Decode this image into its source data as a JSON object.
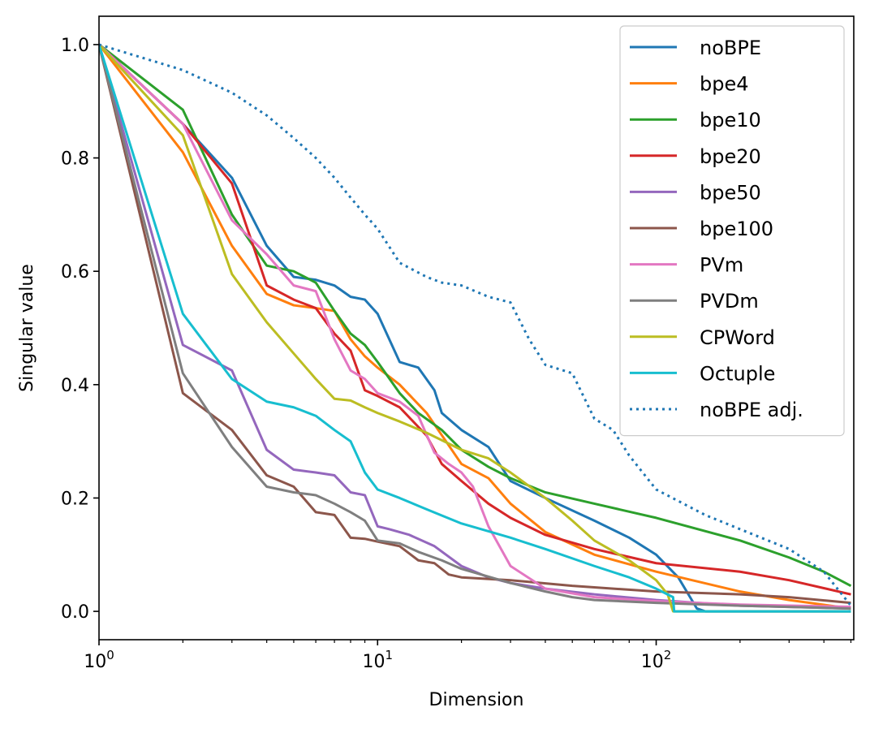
{
  "chart_data": {
    "type": "line",
    "xlabel": "Dimension",
    "ylabel": "Singular value",
    "x_scale": "log",
    "xlim": [
      1,
      512
    ],
    "ylim": [
      -0.05,
      1.05
    ],
    "x_ticks": [
      {
        "base": "10",
        "exp": "0",
        "value": 1
      },
      {
        "base": "10",
        "exp": "1",
        "value": 10
      },
      {
        "base": "10",
        "exp": "2",
        "value": 100
      }
    ],
    "y_ticks": [
      "0.0",
      "0.2",
      "0.4",
      "0.6",
      "0.8",
      "1.0"
    ],
    "y_tick_values": [
      0.0,
      0.2,
      0.4,
      0.6,
      0.8,
      1.0
    ],
    "grid": false,
    "legend_position": "top-right",
    "series": [
      {
        "name": "noBPE",
        "color": "#1f77b4",
        "dash": "solid",
        "points": [
          [
            1,
            1.0
          ],
          [
            2,
            0.86
          ],
          [
            3,
            0.765
          ],
          [
            4,
            0.645
          ],
          [
            5,
            0.59
          ],
          [
            6,
            0.585
          ],
          [
            7,
            0.575
          ],
          [
            8,
            0.555
          ],
          [
            9,
            0.55
          ],
          [
            10,
            0.525
          ],
          [
            12,
            0.44
          ],
          [
            14,
            0.43
          ],
          [
            16,
            0.39
          ],
          [
            17,
            0.35
          ],
          [
            20,
            0.32
          ],
          [
            25,
            0.29
          ],
          [
            30,
            0.23
          ],
          [
            40,
            0.2
          ],
          [
            60,
            0.16
          ],
          [
            80,
            0.13
          ],
          [
            100,
            0.1
          ],
          [
            120,
            0.06
          ],
          [
            140,
            0.005
          ],
          [
            150,
            0.0
          ],
          [
            500,
            0.0
          ]
        ]
      },
      {
        "name": "bpe4",
        "color": "#ff7f0e",
        "dash": "solid",
        "points": [
          [
            1,
            1.0
          ],
          [
            2,
            0.81
          ],
          [
            3,
            0.645
          ],
          [
            4,
            0.56
          ],
          [
            5,
            0.54
          ],
          [
            6,
            0.535
          ],
          [
            7,
            0.53
          ],
          [
            8,
            0.48
          ],
          [
            9,
            0.45
          ],
          [
            10,
            0.43
          ],
          [
            12,
            0.4
          ],
          [
            15,
            0.35
          ],
          [
            20,
            0.26
          ],
          [
            25,
            0.235
          ],
          [
            30,
            0.19
          ],
          [
            40,
            0.14
          ],
          [
            60,
            0.1
          ],
          [
            100,
            0.07
          ],
          [
            200,
            0.035
          ],
          [
            300,
            0.02
          ],
          [
            500,
            0.005
          ]
        ]
      },
      {
        "name": "bpe10",
        "color": "#2ca02c",
        "dash": "solid",
        "points": [
          [
            1,
            1.0
          ],
          [
            2,
            0.885
          ],
          [
            3,
            0.7
          ],
          [
            4,
            0.61
          ],
          [
            5,
            0.6
          ],
          [
            6,
            0.58
          ],
          [
            7,
            0.53
          ],
          [
            8,
            0.49
          ],
          [
            9,
            0.47
          ],
          [
            10,
            0.44
          ],
          [
            12,
            0.385
          ],
          [
            14,
            0.35
          ],
          [
            17,
            0.32
          ],
          [
            20,
            0.285
          ],
          [
            25,
            0.255
          ],
          [
            30,
            0.235
          ],
          [
            40,
            0.21
          ],
          [
            60,
            0.19
          ],
          [
            100,
            0.165
          ],
          [
            200,
            0.125
          ],
          [
            300,
            0.095
          ],
          [
            400,
            0.07
          ],
          [
            500,
            0.045
          ]
        ]
      },
      {
        "name": "bpe20",
        "color": "#d62728",
        "dash": "solid",
        "points": [
          [
            1,
            1.0
          ],
          [
            2,
            0.86
          ],
          [
            3,
            0.755
          ],
          [
            4,
            0.575
          ],
          [
            5,
            0.55
          ],
          [
            6,
            0.535
          ],
          [
            7,
            0.49
          ],
          [
            8,
            0.46
          ],
          [
            9,
            0.39
          ],
          [
            10,
            0.38
          ],
          [
            12,
            0.36
          ],
          [
            15,
            0.31
          ],
          [
            17,
            0.26
          ],
          [
            20,
            0.23
          ],
          [
            25,
            0.19
          ],
          [
            30,
            0.165
          ],
          [
            40,
            0.135
          ],
          [
            60,
            0.11
          ],
          [
            100,
            0.085
          ],
          [
            200,
            0.07
          ],
          [
            300,
            0.055
          ],
          [
            500,
            0.03
          ]
        ]
      },
      {
        "name": "bpe50",
        "color": "#9467bd",
        "dash": "solid",
        "points": [
          [
            1,
            1.0
          ],
          [
            2,
            0.47
          ],
          [
            3,
            0.425
          ],
          [
            4,
            0.285
          ],
          [
            5,
            0.25
          ],
          [
            6,
            0.245
          ],
          [
            7,
            0.24
          ],
          [
            8,
            0.21
          ],
          [
            9,
            0.205
          ],
          [
            10,
            0.15
          ],
          [
            11,
            0.145
          ],
          [
            13,
            0.135
          ],
          [
            16,
            0.115
          ],
          [
            20,
            0.08
          ],
          [
            25,
            0.06
          ],
          [
            30,
            0.05
          ],
          [
            40,
            0.04
          ],
          [
            60,
            0.03
          ],
          [
            100,
            0.02
          ],
          [
            200,
            0.01
          ],
          [
            500,
            0.005
          ]
        ]
      },
      {
        "name": "bpe100",
        "color": "#8c564b",
        "dash": "solid",
        "points": [
          [
            1,
            1.0
          ],
          [
            2,
            0.385
          ],
          [
            3,
            0.32
          ],
          [
            4,
            0.24
          ],
          [
            5,
            0.22
          ],
          [
            6,
            0.175
          ],
          [
            7,
            0.17
          ],
          [
            8,
            0.13
          ],
          [
            9,
            0.128
          ],
          [
            10,
            0.123
          ],
          [
            12,
            0.115
          ],
          [
            14,
            0.09
          ],
          [
            16,
            0.085
          ],
          [
            18,
            0.065
          ],
          [
            20,
            0.06
          ],
          [
            30,
            0.055
          ],
          [
            50,
            0.045
          ],
          [
            100,
            0.035
          ],
          [
            200,
            0.03
          ],
          [
            300,
            0.025
          ],
          [
            500,
            0.015
          ]
        ]
      },
      {
        "name": "PVm",
        "color": "#e377c2",
        "dash": "solid",
        "points": [
          [
            1,
            1.0
          ],
          [
            2,
            0.86
          ],
          [
            3,
            0.69
          ],
          [
            4,
            0.63
          ],
          [
            5,
            0.575
          ],
          [
            6,
            0.565
          ],
          [
            7,
            0.48
          ],
          [
            8,
            0.425
          ],
          [
            9,
            0.41
          ],
          [
            10,
            0.385
          ],
          [
            12,
            0.37
          ],
          [
            14,
            0.345
          ],
          [
            16,
            0.28
          ],
          [
            18,
            0.26
          ],
          [
            20,
            0.245
          ],
          [
            22,
            0.22
          ],
          [
            25,
            0.15
          ],
          [
            30,
            0.08
          ],
          [
            40,
            0.04
          ],
          [
            60,
            0.025
          ],
          [
            100,
            0.018
          ],
          [
            200,
            0.012
          ],
          [
            500,
            0.008
          ]
        ]
      },
      {
        "name": "PVDm",
        "color": "#7f7f7f",
        "dash": "solid",
        "points": [
          [
            1,
            1.0
          ],
          [
            2,
            0.42
          ],
          [
            3,
            0.29
          ],
          [
            4,
            0.22
          ],
          [
            5,
            0.21
          ],
          [
            6,
            0.205
          ],
          [
            7,
            0.19
          ],
          [
            8,
            0.175
          ],
          [
            9,
            0.16
          ],
          [
            10,
            0.125
          ],
          [
            12,
            0.12
          ],
          [
            14,
            0.105
          ],
          [
            17,
            0.09
          ],
          [
            20,
            0.075
          ],
          [
            30,
            0.05
          ],
          [
            40,
            0.035
          ],
          [
            50,
            0.025
          ],
          [
            60,
            0.02
          ],
          [
            100,
            0.015
          ],
          [
            200,
            0.01
          ],
          [
            500,
            0.005
          ]
        ]
      },
      {
        "name": "CPWord",
        "color": "#bcbd22",
        "dash": "solid",
        "points": [
          [
            1,
            1.0
          ],
          [
            2,
            0.84
          ],
          [
            3,
            0.595
          ],
          [
            4,
            0.51
          ],
          [
            5,
            0.455
          ],
          [
            6,
            0.41
          ],
          [
            7,
            0.375
          ],
          [
            8,
            0.372
          ],
          [
            9,
            0.36
          ],
          [
            10,
            0.35
          ],
          [
            12,
            0.335
          ],
          [
            15,
            0.315
          ],
          [
            20,
            0.285
          ],
          [
            25,
            0.27
          ],
          [
            30,
            0.245
          ],
          [
            40,
            0.2
          ],
          [
            50,
            0.16
          ],
          [
            60,
            0.125
          ],
          [
            80,
            0.09
          ],
          [
            100,
            0.055
          ],
          [
            110,
            0.03
          ],
          [
            115,
            0.0
          ],
          [
            500,
            0.0
          ]
        ]
      },
      {
        "name": "Octuple",
        "color": "#17becf",
        "dash": "solid",
        "points": [
          [
            1,
            1.0
          ],
          [
            2,
            0.525
          ],
          [
            3,
            0.41
          ],
          [
            4,
            0.37
          ],
          [
            5,
            0.36
          ],
          [
            6,
            0.345
          ],
          [
            7,
            0.32
          ],
          [
            8,
            0.3
          ],
          [
            9,
            0.245
          ],
          [
            10,
            0.215
          ],
          [
            12,
            0.2
          ],
          [
            15,
            0.18
          ],
          [
            20,
            0.155
          ],
          [
            30,
            0.13
          ],
          [
            40,
            0.11
          ],
          [
            60,
            0.08
          ],
          [
            80,
            0.06
          ],
          [
            100,
            0.04
          ],
          [
            115,
            0.025
          ],
          [
            116,
            0.0
          ],
          [
            500,
            0.0
          ]
        ]
      },
      {
        "name": "noBPE adj.",
        "color": "#1f77b4",
        "dash": "dotted",
        "points": [
          [
            1,
            1.0
          ],
          [
            2,
            0.955
          ],
          [
            3,
            0.915
          ],
          [
            4,
            0.875
          ],
          [
            5,
            0.835
          ],
          [
            6,
            0.8
          ],
          [
            7,
            0.765
          ],
          [
            8,
            0.73
          ],
          [
            9,
            0.7
          ],
          [
            10,
            0.675
          ],
          [
            12,
            0.615
          ],
          [
            15,
            0.59
          ],
          [
            17,
            0.58
          ],
          [
            20,
            0.575
          ],
          [
            25,
            0.555
          ],
          [
            30,
            0.545
          ],
          [
            35,
            0.48
          ],
          [
            40,
            0.435
          ],
          [
            50,
            0.42
          ],
          [
            60,
            0.34
          ],
          [
            70,
            0.32
          ],
          [
            80,
            0.275
          ],
          [
            100,
            0.215
          ],
          [
            150,
            0.17
          ],
          [
            200,
            0.145
          ],
          [
            300,
            0.11
          ],
          [
            400,
            0.07
          ],
          [
            500,
            0.01
          ]
        ]
      }
    ]
  }
}
